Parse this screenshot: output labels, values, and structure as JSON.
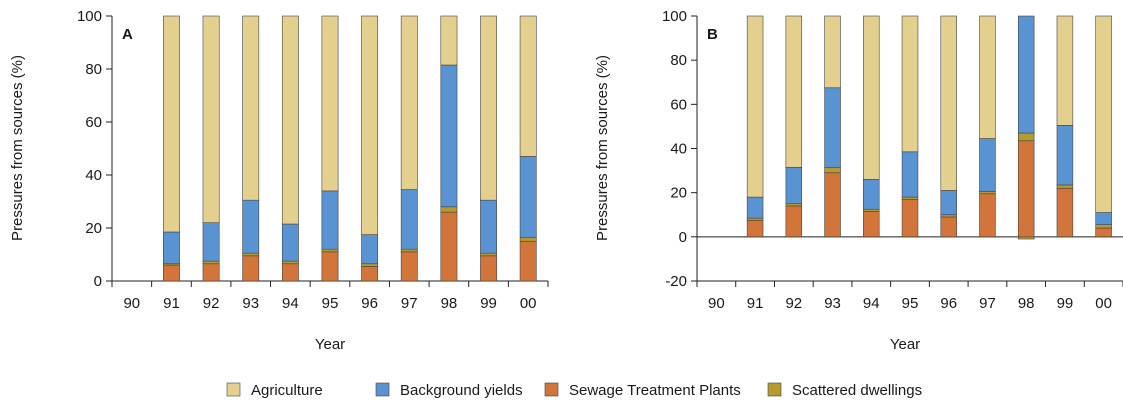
{
  "legend": [
    {
      "label": "Agriculture",
      "color": "#e3d08e"
    },
    {
      "label": "Background yields",
      "color": "#5a93d2"
    },
    {
      "label": "Sewage Treatment Plants",
      "color": "#d2753a"
    },
    {
      "label": "Scattered dwellings",
      "color": "#b59a2e"
    }
  ],
  "chart_data": [
    {
      "type": "bar",
      "stacked": true,
      "panel": "A",
      "xlabel": "Year",
      "ylabel": "Pressures from sources (%)",
      "ylim": [
        0,
        100
      ],
      "yticks": [
        0,
        20,
        40,
        60,
        80,
        100
      ],
      "categories": [
        "90",
        "91",
        "92",
        "93",
        "94",
        "95",
        "96",
        "97",
        "98",
        "99",
        "00"
      ],
      "series": [
        {
          "name": "Sewage Treatment Plants",
          "color": "#d2753a",
          "values": [
            null,
            6,
            6.5,
            9.5,
            6.5,
            11,
            5.5,
            11,
            26,
            9.5,
            15
          ]
        },
        {
          "name": "Scattered dwellings",
          "color": "#b59a2e",
          "values": [
            null,
            0.5,
            1,
            1,
            1,
            1,
            1,
            1,
            2,
            1,
            1.5
          ]
        },
        {
          "name": "Background yields",
          "color": "#5a93d2",
          "values": [
            null,
            12,
            14.5,
            20,
            14,
            22,
            11,
            22.5,
            53.5,
            20,
            30.5
          ]
        },
        {
          "name": "Agriculture",
          "color": "#e3d08e",
          "values": [
            null,
            81.5,
            78,
            69.5,
            78.5,
            66,
            82.5,
            65.5,
            18.5,
            69.5,
            53
          ]
        }
      ]
    },
    {
      "type": "bar",
      "stacked": true,
      "panel": "B",
      "xlabel": "Year",
      "ylabel": "Pressures from sources (%)",
      "ylim": [
        -20,
        100
      ],
      "yticks": [
        -20,
        0,
        20,
        40,
        60,
        80,
        100
      ],
      "categories": [
        "90",
        "91",
        "92",
        "93",
        "94",
        "95",
        "96",
        "97",
        "98",
        "99",
        "00"
      ],
      "series": [
        {
          "name": "Sewage Treatment Plants",
          "color": "#d2753a",
          "values": [
            null,
            7.5,
            14,
            29,
            11.5,
            17,
            9,
            19.5,
            43.5,
            22,
            4
          ]
        },
        {
          "name": "Scattered dwellings",
          "color": "#b59a2e",
          "values": [
            null,
            1,
            1,
            2.5,
            1,
            1,
            1,
            1,
            3.5,
            1.5,
            1.5
          ]
        },
        {
          "name": "Background yields",
          "color": "#5a93d2",
          "values": [
            null,
            9.5,
            16.5,
            36,
            13.5,
            20.5,
            11,
            24,
            54,
            27,
            5.5
          ]
        },
        {
          "name": "Agriculture",
          "color": "#e3d08e",
          "values": [
            null,
            82,
            68.5,
            32.5,
            74,
            61.5,
            79,
            55.5,
            0,
            49.5,
            89
          ]
        }
      ],
      "negative_series": [
        {
          "name": "Scattered dwellings",
          "values": [
            null,
            0,
            0,
            0,
            0,
            0,
            0,
            0,
            -1,
            0,
            0
          ]
        }
      ]
    }
  ]
}
